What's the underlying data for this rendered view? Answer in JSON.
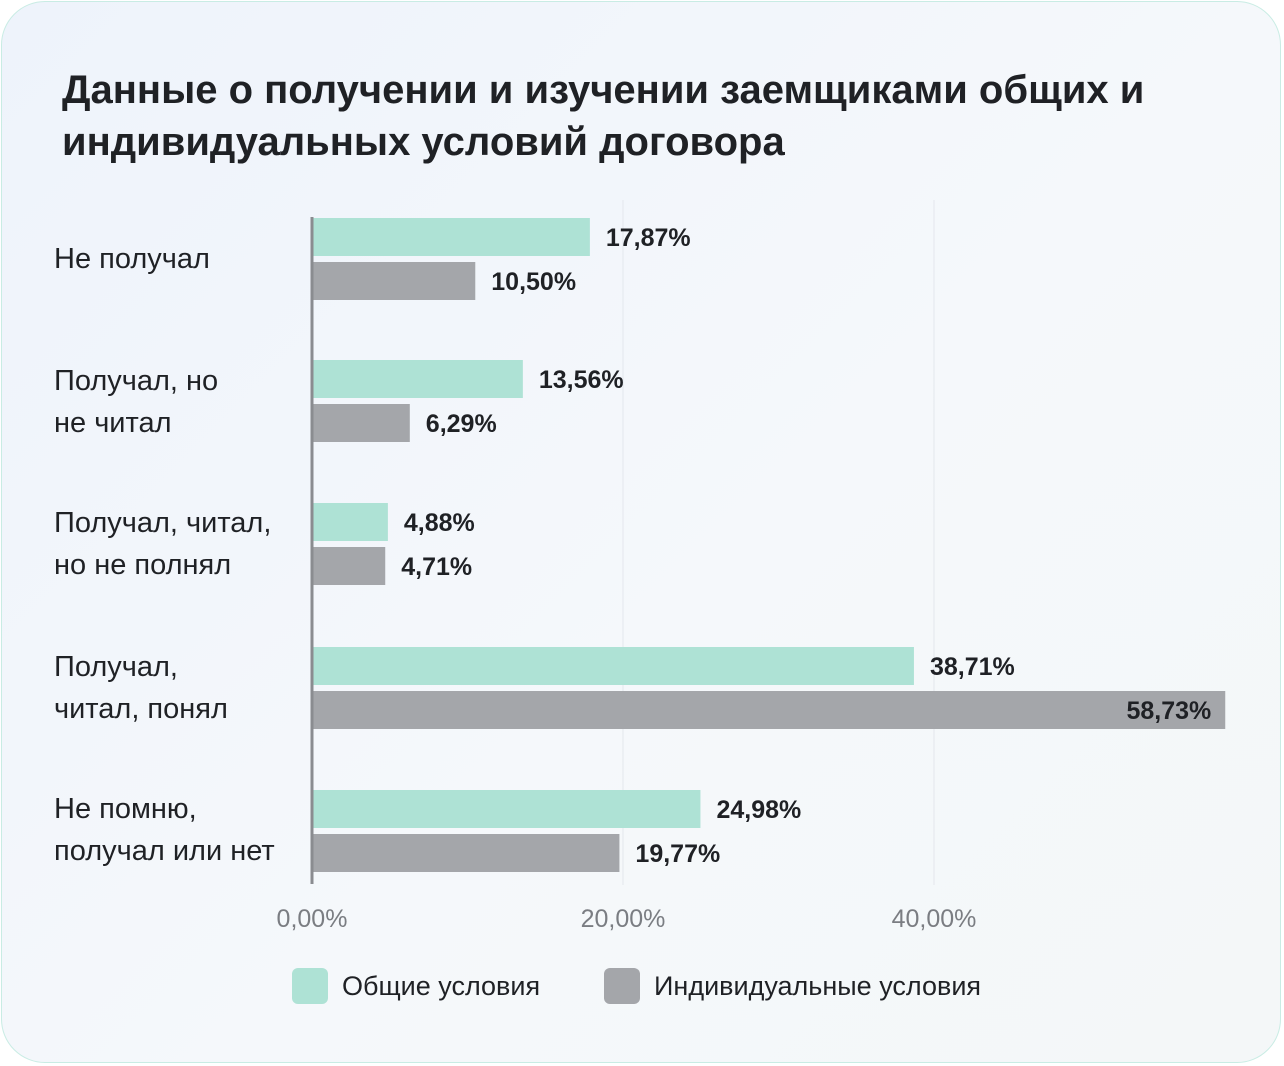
{
  "title_lines": [
    "Данные о получении и изучении заемщиками общих и",
    "индивидуальных условий договора"
  ],
  "colors": {
    "general": "#aee2d5",
    "individual": "#a4a6aa",
    "axis": "#8a8c90"
  },
  "legend": [
    {
      "label": "Общие условия",
      "color": "#aee2d5"
    },
    {
      "label": "Индивидуальные условия",
      "color": "#a4a6aa"
    }
  ],
  "chart_data": {
    "type": "bar",
    "orientation": "horizontal",
    "title": "Данные о получении и изучении заемщиками общих и индивидуальных условий договора",
    "categories": [
      [
        "Не получал"
      ],
      [
        "Получал, но",
        "не читал"
      ],
      [
        "Получал, читал,",
        "но не полнял"
      ],
      [
        "Получал,",
        "читал, понял"
      ],
      [
        "Не помню,",
        "получал или нет"
      ]
    ],
    "series": [
      {
        "name": "Общие условия",
        "values": [
          17.87,
          13.56,
          4.88,
          38.71,
          24.98
        ],
        "labels": [
          "17,87%",
          "13,56%",
          "4,88%",
          "38,71%",
          "24,98%"
        ]
      },
      {
        "name": "Индивидуальные условия",
        "values": [
          10.5,
          6.29,
          4.71,
          58.73,
          19.77
        ],
        "labels": [
          "10,50%",
          "6,29%",
          "4,71%",
          "58,73%",
          "19,77%"
        ]
      }
    ],
    "x_ticks": [
      0,
      20,
      40
    ],
    "x_tick_labels": [
      "0,00%",
      "20,00%",
      "40,00%"
    ],
    "xlim": [
      0,
      59
    ],
    "grid": true,
    "legend_position": "bottom"
  }
}
